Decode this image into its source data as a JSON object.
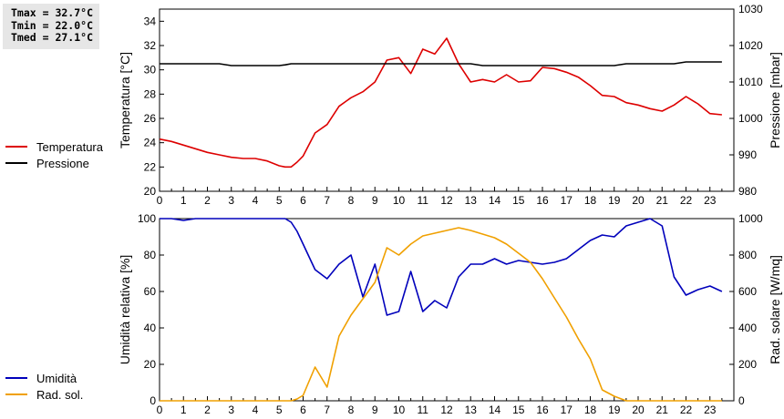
{
  "stats": {
    "tmax": "Tmax = 32.7°C",
    "tmin": "Tmin = 22.0°C",
    "tmed": "Tmed = 27.1°C"
  },
  "colors": {
    "temperature": "#dd0000",
    "pressure": "#000000",
    "humidity": "#0000bb",
    "radiation": "#f0a000"
  },
  "chart_data": [
    {
      "type": "line",
      "x": [
        0,
        0.5,
        1,
        1.5,
        2,
        2.5,
        3,
        3.5,
        4,
        4.5,
        5,
        5.25,
        5.5,
        5.75,
        6,
        6.5,
        7,
        7.5,
        8,
        8.5,
        9,
        9.5,
        10,
        10.5,
        11,
        11.5,
        12,
        12.5,
        13,
        13.5,
        14,
        14.5,
        15,
        15.5,
        16,
        16.5,
        17,
        17.5,
        18,
        18.5,
        19,
        19.5,
        20,
        20.5,
        21,
        21.5,
        22,
        22.5,
        23,
        23.5
      ],
      "xlim": [
        0,
        24
      ],
      "xticks": [
        "0",
        "1",
        "2",
        "3",
        "4",
        "5",
        "6",
        "7",
        "8",
        "9",
        "10",
        "11",
        "12",
        "13",
        "14",
        "15",
        "16",
        "17",
        "18",
        "19",
        "20",
        "21",
        "22",
        "23"
      ],
      "ylabel": "Temperatura [°C]",
      "ylim": [
        20,
        35
      ],
      "yticks": [
        "20",
        "22",
        "24",
        "26",
        "28",
        "30",
        "32",
        "34"
      ],
      "y2label": "Pressione [mbar]",
      "y2lim": [
        980,
        1030
      ],
      "y2ticks": [
        "980",
        "990",
        "1000",
        "1010",
        "1020",
        "1030"
      ],
      "series": [
        {
          "name": "Temperatura",
          "axis": "left",
          "values": [
            24.3,
            24.1,
            23.8,
            23.5,
            23.2,
            23.0,
            22.8,
            22.7,
            22.7,
            22.5,
            22.1,
            22.0,
            22.0,
            22.4,
            22.9,
            24.8,
            25.5,
            27.0,
            27.7,
            28.2,
            29.0,
            30.8,
            31.0,
            29.7,
            31.7,
            31.3,
            32.6,
            30.5,
            29.0,
            29.2,
            29.0,
            29.6,
            29.0,
            29.1,
            30.2,
            30.1,
            29.8,
            29.4,
            28.7,
            27.9,
            27.8,
            27.3,
            27.1,
            26.8,
            26.6,
            27.1,
            27.8,
            27.2,
            26.4,
            26.3
          ]
        },
        {
          "name": "Pressione",
          "axis": "right",
          "values": [
            1015,
            1015,
            1015,
            1015,
            1015,
            1015,
            1014.5,
            1014.5,
            1014.5,
            1014.5,
            1014.5,
            1014.7,
            1015,
            1015,
            1015,
            1015,
            1015,
            1015,
            1015,
            1015,
            1015,
            1015,
            1015,
            1015,
            1015,
            1015,
            1015,
            1015,
            1015,
            1014.5,
            1014.5,
            1014.5,
            1014.5,
            1014.5,
            1014.5,
            1014.5,
            1014.5,
            1014.5,
            1014.5,
            1014.5,
            1014.5,
            1015,
            1015,
            1015,
            1015,
            1015,
            1015.5,
            1015.5,
            1015.5,
            1015.5
          ]
        }
      ],
      "grid": false,
      "legend": "left"
    },
    {
      "type": "line",
      "x": [
        0,
        0.5,
        1,
        1.5,
        2,
        2.5,
        3,
        3.5,
        4,
        4.5,
        5,
        5.25,
        5.5,
        5.75,
        6,
        6.5,
        7,
        7.5,
        8,
        8.5,
        9,
        9.5,
        10,
        10.5,
        11,
        11.5,
        12,
        12.5,
        13,
        13.5,
        14,
        14.5,
        15,
        15.5,
        16,
        16.5,
        17,
        17.5,
        18,
        18.5,
        19,
        19.5,
        20,
        20.5,
        21,
        21.5,
        22,
        22.5,
        23,
        23.5
      ],
      "xlim": [
        0,
        24
      ],
      "xticks": [
        "0",
        "1",
        "2",
        "3",
        "4",
        "5",
        "6",
        "7",
        "8",
        "9",
        "10",
        "11",
        "12",
        "13",
        "14",
        "15",
        "16",
        "17",
        "18",
        "19",
        "20",
        "21",
        "22",
        "23"
      ],
      "ylabel": "Umidità relativa [%]",
      "ylim": [
        0,
        100
      ],
      "yticks": [
        "0",
        "20",
        "40",
        "60",
        "80",
        "100"
      ],
      "y2label": "Rad. solare [W/mq]",
      "y2lim": [
        0,
        1000
      ],
      "y2ticks": [
        "0",
        "200",
        "400",
        "600",
        "800",
        "1000"
      ],
      "series": [
        {
          "name": "Umidità",
          "axis": "left",
          "values": [
            100,
            100,
            99,
            100,
            100,
            100,
            100,
            100,
            100,
            100,
            100,
            100,
            98,
            93,
            86,
            72,
            67,
            75,
            80,
            57,
            75,
            47,
            49,
            71,
            49,
            55,
            51,
            68,
            75,
            75,
            78,
            75,
            77,
            76,
            75,
            76,
            78,
            83,
            88,
            91,
            90,
            96,
            98,
            100,
            96,
            68,
            58,
            61,
            63,
            60
          ]
        },
        {
          "name": "Rad. sol.",
          "axis": "right",
          "values": [
            0,
            0,
            0,
            0,
            0,
            0,
            0,
            0,
            0,
            0,
            0,
            0,
            0,
            10,
            30,
            185,
            75,
            355,
            470,
            560,
            650,
            840,
            800,
            860,
            905,
            920,
            935,
            950,
            935,
            915,
            895,
            860,
            810,
            760,
            670,
            565,
            460,
            340,
            230,
            60,
            25,
            0,
            0,
            0,
            0,
            0,
            0,
            0,
            0,
            0
          ]
        }
      ],
      "grid": false,
      "legend": "left"
    }
  ]
}
